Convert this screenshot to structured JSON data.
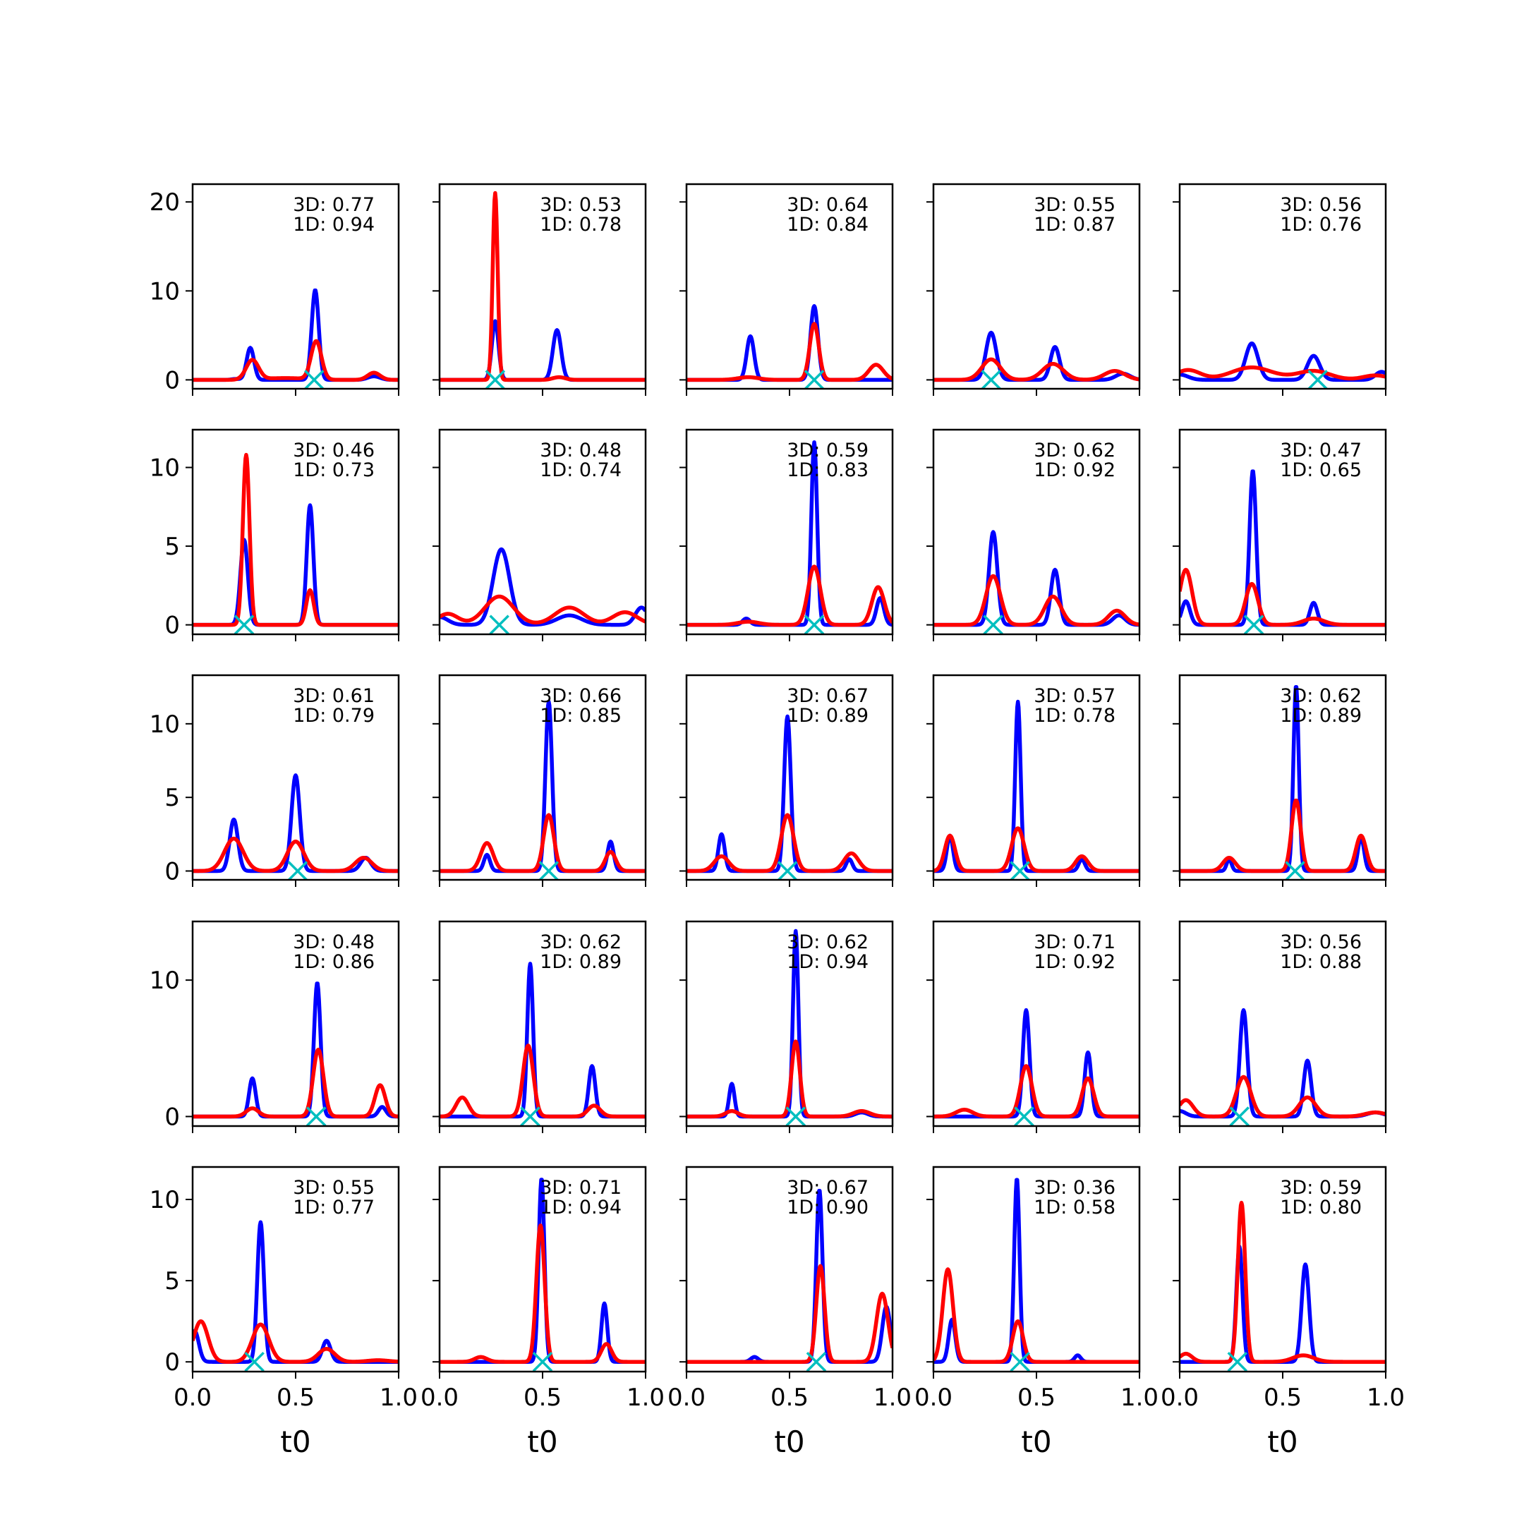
{
  "colors": {
    "blue": "#0000ff",
    "red": "#ff0000",
    "marker": "#00bfbf"
  },
  "chart_data": {
    "type": "line",
    "layout": "5x5 grid of small multiples, shared x axis per column, shared y axis per row",
    "xlabel": "t0",
    "xlim": [
      0,
      1
    ],
    "xticks": [
      "0.0",
      "0.5",
      "1.0"
    ],
    "rows": [
      {
        "ylim": [
          -1,
          22
        ],
        "yticks": [
          0,
          10,
          20
        ]
      },
      {
        "ylim": [
          -0.6,
          12.4
        ],
        "yticks": [
          0,
          5,
          10
        ]
      },
      {
        "ylim": [
          -0.6,
          13.3
        ],
        "yticks": [
          0,
          5,
          10
        ]
      },
      {
        "ylim": [
          -0.7,
          14.3
        ],
        "yticks": [
          0,
          10
        ]
      },
      {
        "ylim": [
          -0.6,
          12.0
        ],
        "yticks": [
          0,
          5,
          10
        ]
      }
    ],
    "panels": [
      {
        "label3d": "3D: 0.77",
        "label1d": "1D: 0.94",
        "marker_x": 0.59,
        "blue": [
          [
            0.21,
            0.1,
            0.02
          ],
          [
            0.28,
            3.6,
            0.018
          ],
          [
            0.595,
            10.1,
            0.017
          ],
          [
            0.88,
            0.4,
            0.03
          ]
        ],
        "red": [
          [
            0.29,
            2.2,
            0.03
          ],
          [
            0.6,
            4.3,
            0.025
          ],
          [
            0.88,
            0.8,
            0.03
          ],
          [
            0.45,
            0.2,
            0.1
          ]
        ]
      },
      {
        "label3d": "3D: 0.53",
        "label1d": "1D: 0.78",
        "marker_x": 0.27,
        "blue": [
          [
            0.27,
            6.6,
            0.016
          ],
          [
            0.57,
            5.6,
            0.02
          ]
        ],
        "red": [
          [
            0.27,
            21,
            0.012
          ],
          [
            0.58,
            0.3,
            0.03
          ]
        ]
      },
      {
        "label3d": "3D: 0.64",
        "label1d": "1D: 0.84",
        "marker_x": 0.62,
        "blue": [
          [
            0.31,
            4.9,
            0.018
          ],
          [
            0.62,
            8.3,
            0.018
          ]
        ],
        "red": [
          [
            0.3,
            0.3,
            0.05
          ],
          [
            0.62,
            6.3,
            0.022
          ],
          [
            0.92,
            1.7,
            0.035
          ]
        ]
      },
      {
        "label3d": "3D: 0.55",
        "label1d": "1D: 0.87",
        "marker_x": 0.28,
        "blue": [
          [
            0.28,
            5.3,
            0.025
          ],
          [
            0.59,
            3.7,
            0.022
          ],
          [
            0.92,
            0.7,
            0.035
          ]
        ],
        "red": [
          [
            0.28,
            2.3,
            0.045
          ],
          [
            0.58,
            1.8,
            0.05
          ],
          [
            0.88,
            1.0,
            0.05
          ]
        ]
      },
      {
        "label3d": "3D: 0.56",
        "label1d": "1D: 0.76",
        "marker_x": 0.67,
        "blue": [
          [
            0.0,
            0.6,
            0.04
          ],
          [
            0.35,
            4.1,
            0.03
          ],
          [
            0.65,
            2.7,
            0.03
          ],
          [
            0.98,
            0.9,
            0.03
          ]
        ],
        "red": [
          [
            0.04,
            1.1,
            0.06
          ],
          [
            0.35,
            1.4,
            0.1
          ],
          [
            0.65,
            1.0,
            0.08
          ],
          [
            0.95,
            0.5,
            0.06
          ]
        ]
      },
      {
        "label3d": "3D: 0.46",
        "label1d": "1D: 0.73",
        "marker_x": 0.25,
        "blue": [
          [
            0.25,
            5.4,
            0.018
          ],
          [
            0.57,
            7.6,
            0.016
          ]
        ],
        "red": [
          [
            0.26,
            10.8,
            0.016
          ],
          [
            0.57,
            2.2,
            0.018
          ]
        ]
      },
      {
        "label3d": "3D: 0.48",
        "label1d": "1D: 0.74",
        "marker_x": 0.29,
        "blue": [
          [
            0.0,
            0.5,
            0.04
          ],
          [
            0.3,
            4.8,
            0.04
          ],
          [
            0.63,
            0.6,
            0.06
          ],
          [
            0.98,
            1.1,
            0.03
          ]
        ],
        "red": [
          [
            0.04,
            0.7,
            0.05
          ],
          [
            0.29,
            1.8,
            0.07
          ],
          [
            0.63,
            1.1,
            0.07
          ],
          [
            0.9,
            0.8,
            0.06
          ]
        ]
      },
      {
        "label3d": "3D: 0.59",
        "label1d": "1D: 0.83",
        "marker_x": 0.62,
        "blue": [
          [
            0.29,
            0.4,
            0.018
          ],
          [
            0.62,
            11.6,
            0.014
          ],
          [
            0.94,
            1.7,
            0.018
          ]
        ],
        "red": [
          [
            0.3,
            0.2,
            0.05
          ],
          [
            0.62,
            3.7,
            0.03
          ],
          [
            0.93,
            2.4,
            0.03
          ]
        ]
      },
      {
        "label3d": "3D: 0.62",
        "label1d": "1D: 0.92",
        "marker_x": 0.29,
        "blue": [
          [
            0.29,
            5.9,
            0.02
          ],
          [
            0.59,
            3.5,
            0.02
          ],
          [
            0.9,
            0.6,
            0.03
          ]
        ],
        "red": [
          [
            0.29,
            3.1,
            0.035
          ],
          [
            0.58,
            1.8,
            0.04
          ],
          [
            0.89,
            0.9,
            0.04
          ]
        ]
      },
      {
        "label3d": "3D: 0.47",
        "label1d": "1D: 0.65",
        "marker_x": 0.36,
        "blue": [
          [
            0.03,
            1.5,
            0.02
          ],
          [
            0.355,
            9.8,
            0.016
          ],
          [
            0.65,
            1.4,
            0.018
          ]
        ],
        "red": [
          [
            0.03,
            3.5,
            0.03
          ],
          [
            0.35,
            2.6,
            0.03
          ],
          [
            0.65,
            0.4,
            0.05
          ]
        ]
      },
      {
        "label3d": "3D: 0.61",
        "label1d": "1D: 0.79",
        "marker_x": 0.51,
        "blue": [
          [
            0.2,
            3.5,
            0.02
          ],
          [
            0.5,
            6.5,
            0.02
          ],
          [
            0.84,
            0.9,
            0.025
          ]
        ],
        "red": [
          [
            0.2,
            2.2,
            0.045
          ],
          [
            0.5,
            2.0,
            0.04
          ],
          [
            0.83,
            0.9,
            0.04
          ]
        ]
      },
      {
        "label3d": "3D: 0.66",
        "label1d": "1D: 0.85",
        "marker_x": 0.53,
        "blue": [
          [
            0.23,
            1.1,
            0.015
          ],
          [
            0.53,
            11.5,
            0.016
          ],
          [
            0.83,
            2.0,
            0.015
          ]
        ],
        "red": [
          [
            0.23,
            1.9,
            0.03
          ],
          [
            0.53,
            3.8,
            0.025
          ],
          [
            0.83,
            1.3,
            0.025
          ]
        ]
      },
      {
        "label3d": "3D: 0.67",
        "label1d": "1D: 0.89",
        "marker_x": 0.49,
        "blue": [
          [
            0.17,
            2.5,
            0.015
          ],
          [
            0.49,
            10.5,
            0.016
          ],
          [
            0.79,
            0.8,
            0.015
          ]
        ],
        "red": [
          [
            0.17,
            1.0,
            0.035
          ],
          [
            0.49,
            3.8,
            0.03
          ],
          [
            0.8,
            1.2,
            0.035
          ]
        ]
      },
      {
        "label3d": "3D: 0.57",
        "label1d": "1D: 0.78",
        "marker_x": 0.42,
        "blue": [
          [
            0.08,
            2.4,
            0.015
          ],
          [
            0.41,
            11.5,
            0.013
          ],
          [
            0.72,
            0.8,
            0.015
          ]
        ],
        "red": [
          [
            0.08,
            2.4,
            0.025
          ],
          [
            0.41,
            2.9,
            0.03
          ],
          [
            0.72,
            1.0,
            0.03
          ]
        ]
      },
      {
        "label3d": "3D: 0.62",
        "label1d": "1D: 0.89",
        "marker_x": 0.56,
        "blue": [
          [
            0.24,
            0.8,
            0.012
          ],
          [
            0.565,
            12.6,
            0.013
          ],
          [
            0.88,
            2.3,
            0.015
          ]
        ],
        "red": [
          [
            0.24,
            0.9,
            0.03
          ],
          [
            0.565,
            4.8,
            0.022
          ],
          [
            0.88,
            2.4,
            0.025
          ]
        ]
      },
      {
        "label3d": "3D: 0.48",
        "label1d": "1D: 0.86",
        "marker_x": 0.6,
        "blue": [
          [
            0.29,
            2.8,
            0.016
          ],
          [
            0.605,
            9.8,
            0.016
          ],
          [
            0.92,
            0.7,
            0.018
          ]
        ],
        "red": [
          [
            0.29,
            0.6,
            0.03
          ],
          [
            0.61,
            4.9,
            0.025
          ],
          [
            0.91,
            2.3,
            0.025
          ]
        ]
      },
      {
        "label3d": "3D: 0.62",
        "label1d": "1D: 0.89",
        "marker_x": 0.44,
        "blue": [
          [
            0.44,
            11.2,
            0.014
          ],
          [
            0.74,
            3.7,
            0.016
          ]
        ],
        "red": [
          [
            0.11,
            1.4,
            0.03
          ],
          [
            0.43,
            5.2,
            0.025
          ],
          [
            0.75,
            0.8,
            0.03
          ]
        ]
      },
      {
        "label3d": "3D: 0.62",
        "label1d": "1D: 0.94",
        "marker_x": 0.53,
        "blue": [
          [
            0.22,
            2.4,
            0.013
          ],
          [
            0.53,
            13.6,
            0.013
          ],
          [
            0.85,
            0.3,
            0.03
          ]
        ],
        "red": [
          [
            0.22,
            0.4,
            0.03
          ],
          [
            0.53,
            5.5,
            0.02
          ],
          [
            0.85,
            0.4,
            0.04
          ]
        ]
      },
      {
        "label3d": "3D: 0.71",
        "label1d": "1D: 0.92",
        "marker_x": 0.44,
        "blue": [
          [
            0.45,
            7.8,
            0.016
          ],
          [
            0.75,
            4.7,
            0.016
          ]
        ],
        "red": [
          [
            0.15,
            0.5,
            0.04
          ],
          [
            0.45,
            3.7,
            0.028
          ],
          [
            0.75,
            2.8,
            0.028
          ]
        ]
      },
      {
        "label3d": "3D: 0.56",
        "label1d": "1D: 0.88",
        "marker_x": 0.29,
        "blue": [
          [
            0.0,
            0.4,
            0.03
          ],
          [
            0.31,
            7.8,
            0.018
          ],
          [
            0.62,
            4.1,
            0.018
          ],
          [
            0.95,
            0.3,
            0.04
          ]
        ],
        "red": [
          [
            0.03,
            1.2,
            0.035
          ],
          [
            0.31,
            2.9,
            0.035
          ],
          [
            0.62,
            1.4,
            0.04
          ],
          [
            0.95,
            0.3,
            0.05
          ]
        ]
      },
      {
        "label3d": "3D: 0.55",
        "label1d": "1D: 0.77",
        "marker_x": 0.3,
        "blue": [
          [
            0.01,
            1.9,
            0.02
          ],
          [
            0.33,
            8.6,
            0.016
          ],
          [
            0.65,
            1.3,
            0.02
          ]
        ],
        "red": [
          [
            0.04,
            2.5,
            0.035
          ],
          [
            0.33,
            2.3,
            0.04
          ],
          [
            0.65,
            0.8,
            0.04
          ],
          [
            0.9,
            0.1,
            0.05
          ]
        ]
      },
      {
        "label3d": "3D: 0.71",
        "label1d": "1D: 0.94",
        "marker_x": 0.5,
        "blue": [
          [
            0.495,
            11.3,
            0.014
          ],
          [
            0.8,
            3.6,
            0.014
          ]
        ],
        "red": [
          [
            0.2,
            0.3,
            0.03
          ],
          [
            0.49,
            8.4,
            0.02
          ],
          [
            0.81,
            1.1,
            0.025
          ]
        ]
      },
      {
        "label3d": "3D: 0.67",
        "label1d": "1D: 0.90",
        "marker_x": 0.63,
        "blue": [
          [
            0.33,
            0.3,
            0.018
          ],
          [
            0.645,
            10.6,
            0.015
          ],
          [
            0.97,
            3.4,
            0.02
          ]
        ],
        "red": [
          [
            0.65,
            5.9,
            0.02
          ],
          [
            0.95,
            4.2,
            0.028
          ]
        ]
      },
      {
        "label3d": "3D: 0.36",
        "label1d": "1D: 0.58",
        "marker_x": 0.42,
        "blue": [
          [
            0.09,
            2.6,
            0.016
          ],
          [
            0.405,
            11.3,
            0.013
          ],
          [
            0.7,
            0.4,
            0.015
          ]
        ],
        "red": [
          [
            0.07,
            5.7,
            0.025
          ],
          [
            0.41,
            2.5,
            0.025
          ]
        ]
      },
      {
        "label3d": "3D: 0.59",
        "label1d": "1D: 0.80",
        "marker_x": 0.28,
        "blue": [
          [
            0.29,
            7.1,
            0.015
          ],
          [
            0.61,
            6.0,
            0.018
          ]
        ],
        "red": [
          [
            0.03,
            0.5,
            0.03
          ],
          [
            0.3,
            9.8,
            0.018
          ],
          [
            0.6,
            0.4,
            0.05
          ]
        ]
      }
    ]
  }
}
